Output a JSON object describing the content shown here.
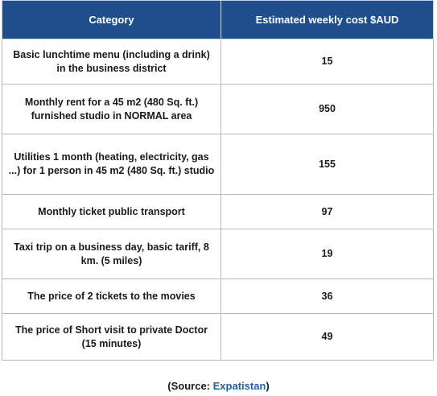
{
  "table": {
    "headers": [
      "Category",
      "Estimated weekly cost $AUD"
    ],
    "rows": [
      {
        "category": "Basic lunchtime menu (including a drink) in the business district",
        "cost": "15"
      },
      {
        "category": "Monthly rent for a 45 m2 (480 Sq. ft.) furnished studio in NORMAL area",
        "cost": "950"
      },
      {
        "category": "Utilities 1 month (heating, electricity, gas ...) for 1 person in 45 m2 (480 Sq. ft.) studio",
        "cost": "155"
      },
      {
        "category": "Monthly ticket public transport",
        "cost": "97"
      },
      {
        "category": "Taxi trip on a business day, basic tariff, 8 km. (5 miles)",
        "cost": "19"
      },
      {
        "category": "The price of 2 tickets to the movies",
        "cost": "36"
      },
      {
        "category": "The price of Short visit to private Doctor (15 minutes)",
        "cost": "49"
      }
    ]
  },
  "source": {
    "prefix": "(Source: ",
    "link_text": "Expatistan",
    "suffix": ")"
  },
  "colors": {
    "header_background": "#1f4e8c",
    "header_text": "#ffffff",
    "link": "#1f5fa8"
  }
}
